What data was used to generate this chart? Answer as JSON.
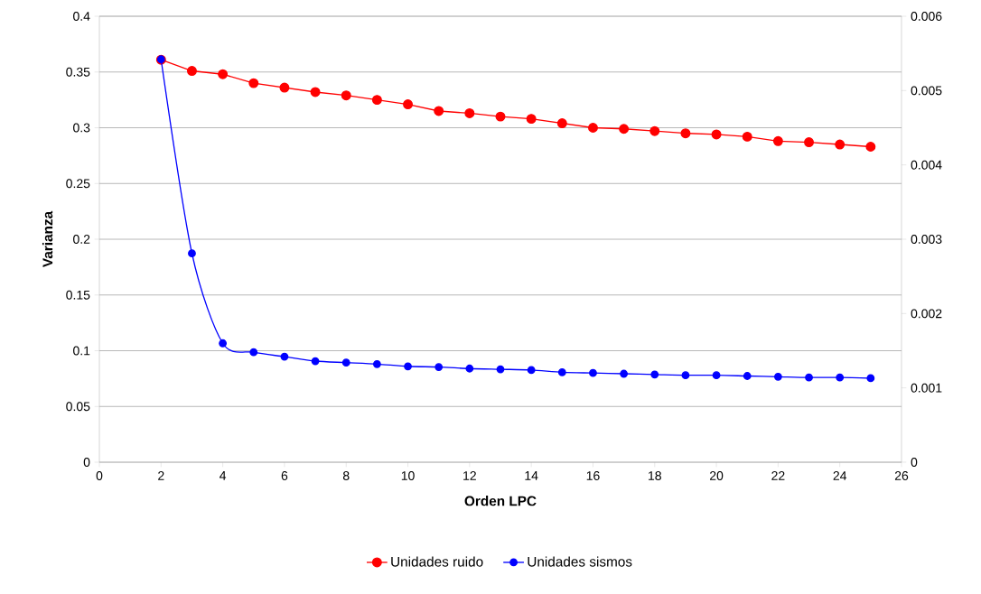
{
  "chart_data": {
    "type": "line",
    "xlabel": "Orden LPC",
    "ylabel": "Varianza",
    "x": [
      2,
      3,
      4,
      5,
      6,
      7,
      8,
      9,
      10,
      11,
      12,
      13,
      14,
      15,
      16,
      17,
      18,
      19,
      20,
      21,
      22,
      23,
      24,
      25
    ],
    "series": [
      {
        "name": "Unidades ruido",
        "color": "#ff0000",
        "values": [
          0.361,
          0.351,
          0.348,
          0.34,
          0.336,
          0.332,
          0.329,
          0.325,
          0.321,
          0.315,
          0.313,
          0.31,
          0.308,
          0.304,
          0.3,
          0.299,
          0.297,
          0.295,
          0.294,
          0.292,
          0.288,
          0.287,
          0.285,
          0.283
        ]
      },
      {
        "name": "Unidades sismos",
        "color": "#0000ff",
        "axis": "y2",
        "values": [
          0.00542,
          0.00281,
          0.0016,
          0.00148,
          0.00142,
          0.00136,
          0.00134,
          0.00132,
          0.00129,
          0.00128,
          0.00126,
          0.00125,
          0.00124,
          0.00121,
          0.0012,
          0.00119,
          0.00118,
          0.00117,
          0.00117,
          0.00116,
          0.00115,
          0.00114,
          0.00114,
          0.00113
        ]
      }
    ],
    "xlim": [
      0,
      26
    ],
    "xticks": [
      0,
      2,
      4,
      6,
      8,
      10,
      12,
      14,
      16,
      18,
      20,
      22,
      24,
      26
    ],
    "ylim": [
      0,
      0.4
    ],
    "yticks": [
      0,
      0.05,
      0.1,
      0.15,
      0.2,
      0.25,
      0.3,
      0.35,
      0.4
    ],
    "y2lim": [
      0,
      0.006
    ],
    "y2ticks": [
      0,
      0.001,
      0.002,
      0.003,
      0.004,
      0.005,
      0.006
    ],
    "grid": "y",
    "legend": "bottom",
    "marker": "circle",
    "line_style": "solid"
  }
}
